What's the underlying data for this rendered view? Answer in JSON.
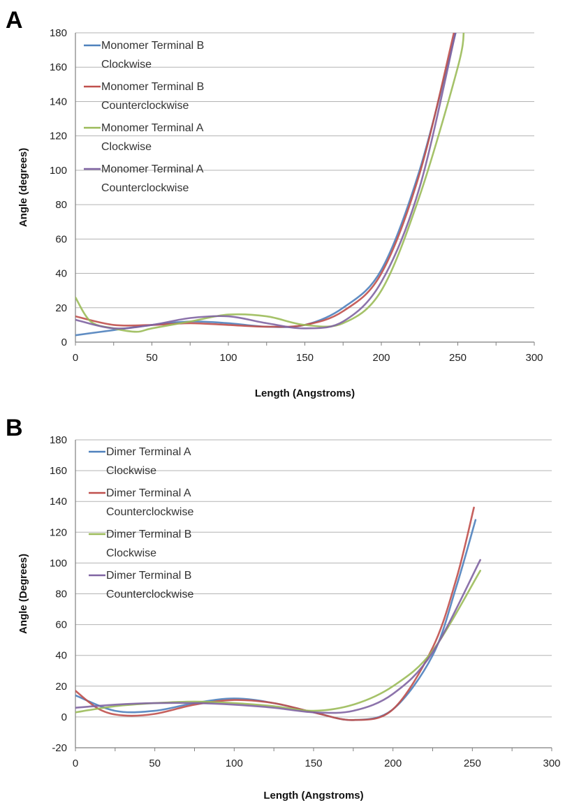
{
  "chart_data": [
    {
      "panel": "A",
      "type": "line",
      "xlabel": "Length (Angstroms)",
      "ylabel": "Angle (degrees)",
      "xlim": [
        0,
        300
      ],
      "ylim": [
        0,
        180
      ],
      "xticks": [
        "0",
        "50",
        "100",
        "150",
        "200",
        "250",
        "300"
      ],
      "yticks": [
        "0",
        "20",
        "40",
        "60",
        "80",
        "100",
        "120",
        "140",
        "160",
        "180"
      ],
      "grid": "horizontal",
      "legend_position": "top-left",
      "series": [
        {
          "name": "Monomer Terminal B Clockwise",
          "legend_lines": [
            "Monomer Terminal B",
            "Clockwise"
          ],
          "color": "#4f81bd",
          "x": [
            0,
            25,
            50,
            75,
            100,
            125,
            150,
            175,
            200,
            225,
            250
          ],
          "y": [
            4,
            7,
            10,
            12,
            11,
            9,
            10,
            20,
            42,
            100,
            185
          ]
        },
        {
          "name": "Monomer Terminal B Counterclockwise",
          "legend_lines": [
            "Monomer Terminal B",
            "Counterclockwise"
          ],
          "color": "#c0504d",
          "x": [
            0,
            25,
            50,
            75,
            100,
            125,
            150,
            175,
            200,
            225,
            248
          ],
          "y": [
            15,
            10,
            10,
            11,
            10,
            9,
            10,
            18,
            40,
            98,
            182
          ]
        },
        {
          "name": "Monomer Terminal A Clockwise",
          "legend_lines": [
            "Monomer Terminal A",
            "Clockwise"
          ],
          "color": "#9bbb59",
          "x": [
            0,
            10,
            25,
            40,
            50,
            75,
            100,
            125,
            150,
            175,
            200,
            225,
            250,
            254
          ],
          "y": [
            26,
            12,
            8,
            6,
            8,
            12,
            16,
            15,
            10,
            11,
            30,
            85,
            160,
            182
          ]
        },
        {
          "name": "Monomer Terminal A Counterclockwise",
          "legend_lines": [
            "Monomer Terminal A",
            "Counterclockwise"
          ],
          "color": "#8064a2",
          "x": [
            0,
            25,
            50,
            75,
            100,
            125,
            150,
            175,
            200,
            225,
            249
          ],
          "y": [
            13,
            8,
            10,
            14,
            15,
            11,
            8,
            12,
            35,
            90,
            182
          ]
        }
      ]
    },
    {
      "panel": "B",
      "type": "line",
      "xlabel": "Length (Angstroms)",
      "ylabel": "Angle (Degrees)",
      "xlim": [
        0,
        300
      ],
      "ylim": [
        -20,
        180
      ],
      "xticks": [
        "0",
        "50",
        "100",
        "150",
        "200",
        "250",
        "300"
      ],
      "yticks": [
        "-20",
        "0",
        "20",
        "40",
        "60",
        "80",
        "100",
        "120",
        "140",
        "160",
        "180"
      ],
      "grid": "horizontal",
      "legend_position": "top-left",
      "series": [
        {
          "name": "Dimer Terminal A Clockwise",
          "legend_lines": [
            "Dimer Terminal A",
            "Clockwise"
          ],
          "color": "#4f81bd",
          "x": [
            0,
            25,
            50,
            75,
            100,
            125,
            150,
            175,
            200,
            225,
            240,
            252
          ],
          "y": [
            14,
            4,
            4,
            9,
            12,
            9,
            3,
            -2,
            5,
            40,
            85,
            128
          ]
        },
        {
          "name": "Dimer Terminal A Counterclockwise",
          "legend_lines": [
            "Dimer Terminal A",
            "Counterclockwise"
          ],
          "color": "#c0504d",
          "x": [
            0,
            15,
            30,
            50,
            75,
            100,
            125,
            150,
            175,
            200,
            225,
            240,
            251
          ],
          "y": [
            17,
            5,
            1,
            2,
            8,
            11,
            9,
            3,
            -2,
            5,
            45,
            90,
            136
          ]
        },
        {
          "name": "Dimer Terminal B Clockwise",
          "legend_lines": [
            "Dimer Terminal B",
            "Clockwise"
          ],
          "color": "#9bbb59",
          "x": [
            0,
            25,
            50,
            75,
            100,
            125,
            150,
            175,
            200,
            225,
            255
          ],
          "y": [
            3,
            7,
            9,
            10,
            9,
            7,
            4,
            8,
            20,
            43,
            95
          ]
        },
        {
          "name": "Dimer Terminal B Counterclockwise",
          "legend_lines": [
            "Dimer Terminal B",
            "Counterclockwise"
          ],
          "color": "#8064a2",
          "x": [
            0,
            25,
            50,
            75,
            100,
            125,
            150,
            175,
            200,
            225,
            255
          ],
          "y": [
            6,
            8,
            9,
            9,
            8,
            6,
            3,
            4,
            15,
            42,
            102
          ]
        }
      ]
    }
  ]
}
